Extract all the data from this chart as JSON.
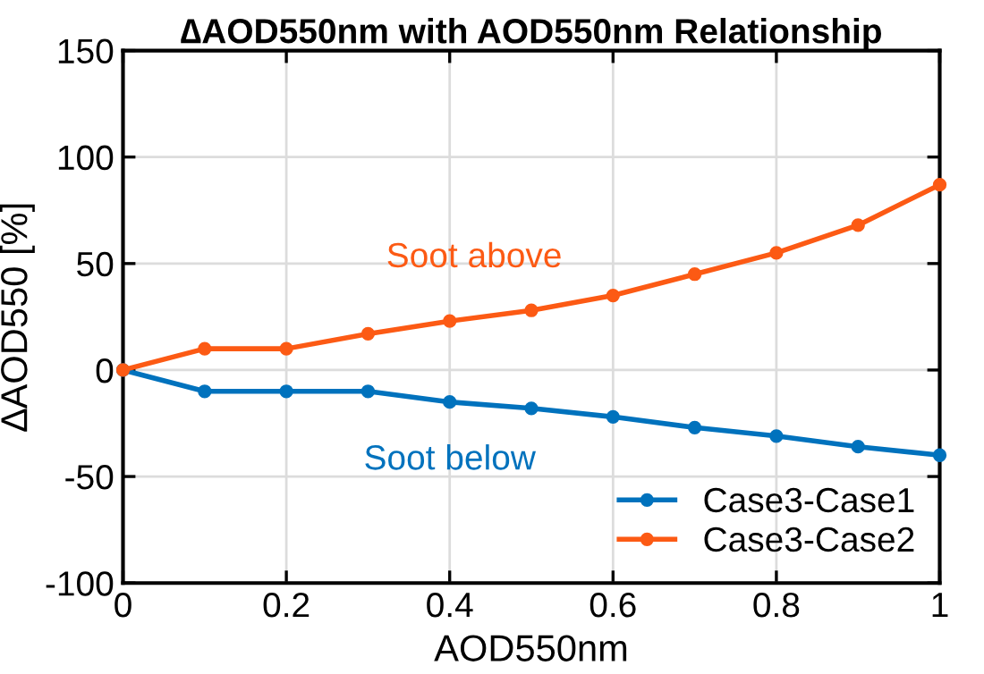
{
  "chart_data": {
    "type": "line",
    "title": "∆AOD550nm with AOD550nm Relationship",
    "xlabel": "AOD550nm",
    "ylabel": "∆AOD550 [%]",
    "x": [
      0,
      0.1,
      0.2,
      0.3,
      0.4,
      0.5,
      0.6,
      0.7,
      0.8,
      0.9,
      1
    ],
    "series": [
      {
        "name": "Case3-Case1",
        "color": "#0072bd",
        "values": [
          0,
          -10,
          -10,
          -10,
          -15,
          -18,
          -22,
          -27,
          -31,
          -36,
          -40
        ]
      },
      {
        "name": "Case3-Case2",
        "color": "#fc5a14",
        "values": [
          0,
          10,
          10,
          17,
          23,
          28,
          35,
          45,
          55,
          68,
          87
        ]
      }
    ],
    "annotations": [
      "Soot above",
      "Soot below"
    ],
    "xlim": [
      0,
      1
    ],
    "xticks": [
      0,
      0.2,
      0.4,
      0.6,
      0.8,
      1
    ],
    "ylim": [
      -100,
      150
    ],
    "yticks": [
      -100,
      -50,
      0,
      50,
      100,
      150
    ],
    "grid": true,
    "legend": "bottom right",
    "marker": "circle",
    "line_style": "solid"
  }
}
